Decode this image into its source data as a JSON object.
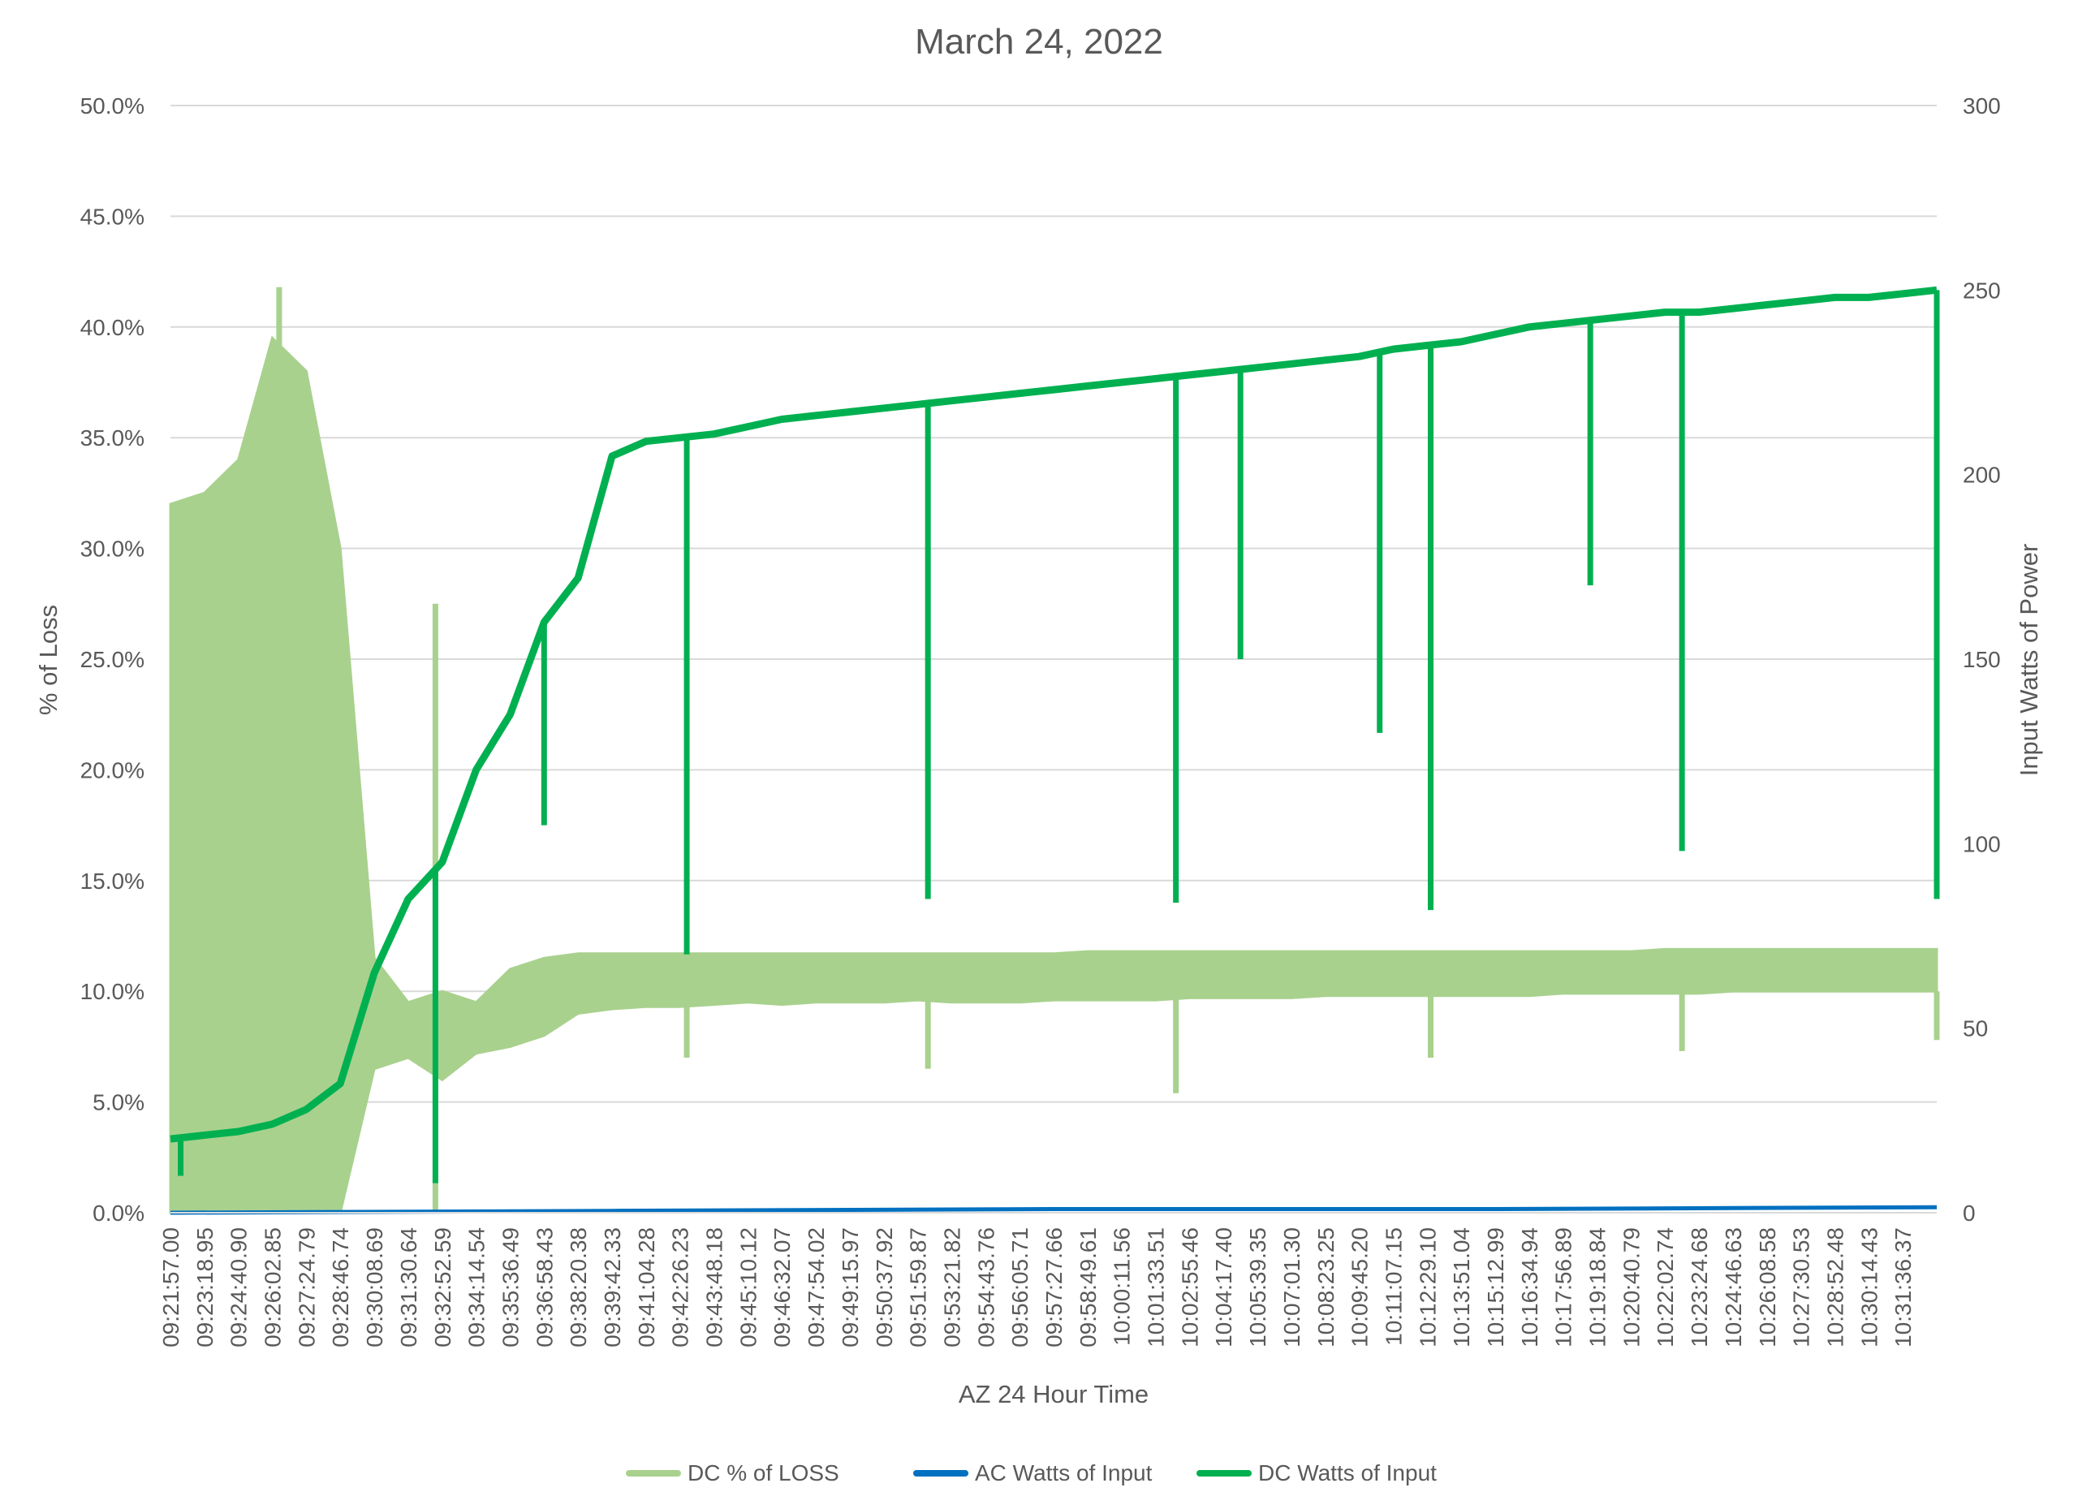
{
  "chart_data": {
    "type": "line",
    "title": "March 24, 2022",
    "xlabel": "AZ 24 Hour Time",
    "ylabel_left": "% of Loss",
    "ylabel_right": "Input Watts of Power",
    "y_left": {
      "min": 0,
      "max": 0.5,
      "ticks": [
        "0.0%",
        "5.0%",
        "10.0%",
        "15.0%",
        "20.0%",
        "25.0%",
        "30.0%",
        "35.0%",
        "40.0%",
        "45.0%",
        "50.0%"
      ]
    },
    "y_right": {
      "min": 0,
      "max": 300,
      "ticks": [
        "0",
        "50",
        "100",
        "150",
        "200",
        "250",
        "300"
      ]
    },
    "grid": "horizontal",
    "legend_position": "bottom",
    "x_tick_labels": [
      "09:21:57.00",
      "09:23:18.95",
      "09:24:40.90",
      "09:26:02.85",
      "09:27:24.79",
      "09:28:46.74",
      "09:30:08.69",
      "09:31:30.64",
      "09:32:52.59",
      "09:34:14.54",
      "09:35:36.49",
      "09:36:58.43",
      "09:38:20.38",
      "09:39:42.33",
      "09:41:04.28",
      "09:42:26.23",
      "09:43:48.18",
      "09:45:10.12",
      "09:46:32.07",
      "09:47:54.02",
      "09:49:15.97",
      "09:50:37.92",
      "09:51:59.87",
      "09:53:21.82",
      "09:54:43.76",
      "09:56:05.71",
      "09:57:27.66",
      "09:58:49.61",
      "10:00:11.56",
      "10:01:33.51",
      "10:02:55.46",
      "10:04:17.40",
      "10:05:39.35",
      "10:07:01.30",
      "10:08:23.25",
      "10:09:45.20",
      "10:11:07.15",
      "10:12:29.10",
      "10:13:51.04",
      "10:15:12.99",
      "10:16:34.94",
      "10:17:56.89",
      "10:19:18.84",
      "10:20:40.79",
      "10:22:02.74",
      "10:23:24.68",
      "10:24:46.63",
      "10:26:08.58",
      "10:27:30.53",
      "10:28:52.48",
      "10:30:14.43",
      "10:31:36.37"
    ],
    "series": [
      {
        "name": "DC % of LOSS",
        "axis": "left",
        "color": "#a9d18e",
        "x_index": [
          0,
          1,
          2,
          3,
          4,
          5,
          6,
          7,
          8,
          9,
          10,
          11,
          12,
          13,
          14,
          15,
          16,
          17,
          18,
          19,
          20,
          21,
          22,
          23,
          24,
          25,
          26,
          27,
          28,
          29,
          30,
          31,
          32,
          33,
          34,
          35,
          36,
          37,
          38,
          39,
          40,
          41,
          42,
          43,
          44,
          45,
          46,
          47,
          48,
          49,
          50,
          51,
          52
        ],
        "low": [
          0.0,
          0.0,
          0.0,
          0.0,
          0.0,
          0.0,
          0.065,
          0.07,
          0.06,
          0.072,
          0.075,
          0.08,
          0.09,
          0.092,
          0.093,
          0.093,
          0.094,
          0.095,
          0.094,
          0.095,
          0.095,
          0.095,
          0.096,
          0.095,
          0.095,
          0.095,
          0.096,
          0.096,
          0.096,
          0.096,
          0.097,
          0.097,
          0.097,
          0.097,
          0.098,
          0.098,
          0.098,
          0.098,
          0.098,
          0.098,
          0.098,
          0.099,
          0.099,
          0.099,
          0.099,
          0.099,
          0.1,
          0.1,
          0.1,
          0.1,
          0.1,
          0.1,
          0.1
        ],
        "high": [
          0.32,
          0.325,
          0.34,
          0.395,
          0.38,
          0.3,
          0.115,
          0.095,
          0.1,
          0.095,
          0.11,
          0.115,
          0.117,
          0.117,
          0.117,
          0.117,
          0.117,
          0.117,
          0.117,
          0.117,
          0.117,
          0.117,
          0.117,
          0.117,
          0.117,
          0.117,
          0.117,
          0.118,
          0.118,
          0.118,
          0.118,
          0.118,
          0.118,
          0.118,
          0.118,
          0.118,
          0.118,
          0.118,
          0.118,
          0.118,
          0.118,
          0.118,
          0.118,
          0.118,
          0.119,
          0.119,
          0.119,
          0.119,
          0.119,
          0.119,
          0.119,
          0.119,
          0.119
        ],
        "spikes": [
          {
            "x_index": 3.2,
            "value": 0.418
          },
          {
            "x_index": 7.8,
            "value": 0.275
          },
          {
            "x_index": 15.2,
            "value": 0.07
          },
          {
            "x_index": 22.3,
            "value": 0.065
          },
          {
            "x_index": 29.6,
            "value": 0.054
          },
          {
            "x_index": 37.1,
            "value": 0.07
          },
          {
            "x_index": 44.5,
            "value": 0.073
          },
          {
            "x_index": 52.0,
            "value": 0.078
          }
        ]
      },
      {
        "name": "AC Watts of Input",
        "axis": "right",
        "color": "#0070c0",
        "x_index": [
          0,
          13,
          26,
          39,
          52
        ],
        "values": [
          0,
          0.5,
          1,
          1,
          1.5
        ]
      },
      {
        "name": "DC Watts of Input",
        "axis": "right",
        "color": "#00b050",
        "x_index": [
          0,
          1,
          2,
          3,
          4,
          5,
          6,
          7,
          8,
          9,
          10,
          11,
          12,
          13,
          14,
          15,
          16,
          17,
          18,
          19,
          20,
          21,
          22,
          23,
          24,
          25,
          26,
          27,
          28,
          29,
          30,
          31,
          32,
          33,
          34,
          35,
          36,
          37,
          38,
          39,
          40,
          41,
          42,
          43,
          44,
          45,
          46,
          47,
          48,
          49,
          50,
          51,
          52
        ],
        "values": [
          20,
          21,
          22,
          24,
          28,
          35,
          65,
          85,
          95,
          120,
          135,
          160,
          172,
          205,
          209,
          210,
          211,
          213,
          215,
          216,
          217,
          218,
          219,
          220,
          221,
          222,
          223,
          224,
          225,
          226,
          227,
          228,
          229,
          230,
          231,
          232,
          234,
          235,
          236,
          238,
          240,
          241,
          242,
          243,
          244,
          244,
          245,
          246,
          247,
          248,
          248,
          249,
          250
        ],
        "dips": [
          {
            "x_index": 0.3,
            "value": 10
          },
          {
            "x_index": 7.8,
            "value": 8
          },
          {
            "x_index": 11.0,
            "value": 105
          },
          {
            "x_index": 15.2,
            "value": 70
          },
          {
            "x_index": 22.3,
            "value": 85
          },
          {
            "x_index": 29.6,
            "value": 84
          },
          {
            "x_index": 31.5,
            "value": 150
          },
          {
            "x_index": 35.6,
            "value": 130
          },
          {
            "x_index": 37.1,
            "value": 82
          },
          {
            "x_index": 41.8,
            "value": 170
          },
          {
            "x_index": 44.5,
            "value": 98
          },
          {
            "x_index": 52.0,
            "value": 85
          }
        ]
      }
    ]
  }
}
